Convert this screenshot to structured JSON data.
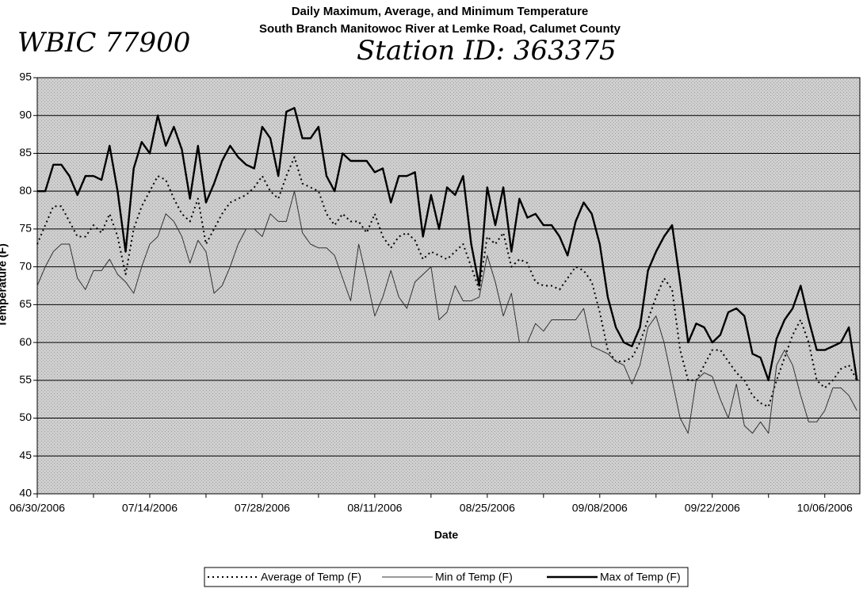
{
  "chart_data": {
    "type": "line",
    "title": "Daily Maximum, Average, and Minimum Temperature",
    "subtitle": "South Branch Manitowoc River at Lemke Road, Calumet County",
    "annotations": [
      "WBIC 77900",
      "Station ID: 363375"
    ],
    "x_label": "Date",
    "y_label": "Temperature (F)",
    "categories": [
      "06/30/2006",
      null,
      null,
      null,
      null,
      null,
      null,
      null,
      null,
      null,
      null,
      null,
      null,
      null,
      "07/14/2006",
      null,
      null,
      null,
      null,
      null,
      null,
      null,
      null,
      null,
      null,
      null,
      null,
      null,
      "07/28/2006",
      null,
      null,
      null,
      null,
      null,
      null,
      null,
      null,
      null,
      null,
      null,
      null,
      null,
      "08/11/2006",
      null,
      null,
      null,
      null,
      null,
      null,
      null,
      null,
      null,
      null,
      null,
      null,
      null,
      "08/25/2006",
      null,
      null,
      null,
      null,
      null,
      null,
      null,
      null,
      null,
      null,
      null,
      null,
      null,
      "09/08/2006",
      null,
      null,
      null,
      null,
      null,
      null,
      null,
      null,
      null,
      null,
      null,
      null,
      null,
      "09/22/2006",
      null,
      null,
      null,
      null,
      null,
      null,
      null,
      null,
      null,
      null,
      null,
      null,
      null,
      "10/06/2006",
      null,
      null,
      null,
      null
    ],
    "series": [
      {
        "name": "Average of Temp (F)",
        "color": "#000000",
        "line_style": "dotted",
        "line_width": 2,
        "values": [
          73,
          75.5,
          78,
          78,
          76,
          74,
          74,
          75.5,
          74.5,
          77,
          74,
          69,
          75,
          78,
          80,
          82,
          81.5,
          79,
          77,
          76,
          79,
          73,
          75,
          77,
          78.5,
          79,
          79.5,
          80.5,
          82,
          80,
          79,
          82,
          84.5,
          81,
          80.5,
          80,
          77,
          75.5,
          77,
          76,
          76,
          74.5,
          77,
          74,
          72.5,
          74,
          74.5,
          73.5,
          71,
          72,
          71.5,
          71,
          72,
          73,
          70,
          67,
          74,
          73,
          74.5,
          70,
          71,
          70.5,
          68,
          67.5,
          67.5,
          67,
          68.5,
          70,
          69.5,
          68,
          64,
          59,
          57.5,
          57.5,
          58,
          60,
          63,
          66,
          68.5,
          67,
          59,
          55,
          55,
          57,
          59,
          59,
          57.5,
          56,
          55,
          53,
          52,
          51.5,
          55,
          58,
          61,
          63,
          60,
          55,
          54,
          55,
          56.5,
          57,
          55
        ]
      },
      {
        "name": "Min of Temp (F)",
        "color": "#333333",
        "line_style": "solid",
        "line_width": 1,
        "values": [
          67.5,
          70,
          72,
          73,
          73,
          68.5,
          67,
          69.5,
          69.5,
          71,
          69,
          68,
          66.5,
          70,
          73,
          74,
          77,
          76,
          74,
          70.5,
          73.5,
          72,
          66.5,
          67.5,
          70,
          73,
          75,
          75,
          74,
          77,
          76,
          76,
          80,
          74.5,
          73,
          72.5,
          72.5,
          71.5,
          68.5,
          65.5,
          73,
          68.5,
          63.5,
          66,
          69.5,
          66,
          64.5,
          68,
          69,
          70,
          63,
          64,
          67.5,
          65.5,
          65.5,
          66,
          71.5,
          68,
          63.5,
          66.5,
          60,
          60,
          62.5,
          61.5,
          63,
          63,
          63,
          63,
          64.5,
          59.5,
          59,
          58.5,
          57.5,
          57,
          54.5,
          57,
          62,
          63.5,
          60,
          55,
          50,
          48,
          55,
          56,
          55.5,
          52.5,
          50,
          54.5,
          49,
          48,
          49.5,
          48,
          57,
          59,
          57,
          53,
          49.5,
          49.5,
          51,
          54,
          54,
          53,
          51
        ]
      },
      {
        "name": "Max of Temp (F)",
        "color": "#000000",
        "line_style": "solid",
        "line_width": 2.4,
        "values": [
          80,
          80,
          83.5,
          83.5,
          82,
          79.5,
          82,
          82,
          81.5,
          86,
          80,
          72,
          83,
          86.5,
          85,
          90,
          86,
          88.5,
          85.5,
          79,
          86,
          78.5,
          81,
          84,
          86,
          84.5,
          83.5,
          83,
          88.5,
          87,
          82,
          90.5,
          91,
          87,
          87,
          88.5,
          82,
          80,
          85,
          84,
          84,
          84,
          82.5,
          83,
          78.5,
          82,
          82,
          82.5,
          74,
          79.5,
          75,
          80.5,
          79.5,
          82,
          73,
          67.5,
          80.5,
          75.5,
          80.5,
          72,
          79,
          76.5,
          77,
          75.5,
          75.5,
          74,
          71.5,
          76,
          78.5,
          77,
          73,
          66,
          62,
          60,
          59.5,
          62,
          69.5,
          72,
          74,
          75.5,
          68,
          60,
          62.5,
          62,
          60,
          61,
          64,
          64.5,
          63.5,
          58.5,
          58,
          55,
          60.5,
          63,
          64.5,
          67.5,
          63,
          59,
          59,
          59.5,
          60,
          62,
          55
        ]
      }
    ],
    "ylim": [
      40,
      95
    ],
    "yticks": [
      40,
      45,
      50,
      55,
      60,
      65,
      70,
      75,
      80,
      85,
      90,
      95
    ],
    "grid": true,
    "legend": "bottom"
  }
}
